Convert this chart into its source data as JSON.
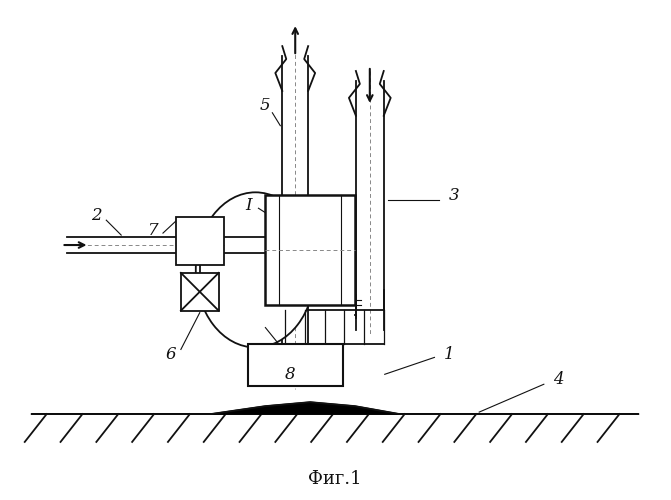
{
  "bg_color": "#ffffff",
  "line_color": "#111111",
  "title": "Фиг.1",
  "title_fontsize": 13,
  "fig_width": 6.71,
  "fig_height": 5.0,
  "dpi": 100
}
